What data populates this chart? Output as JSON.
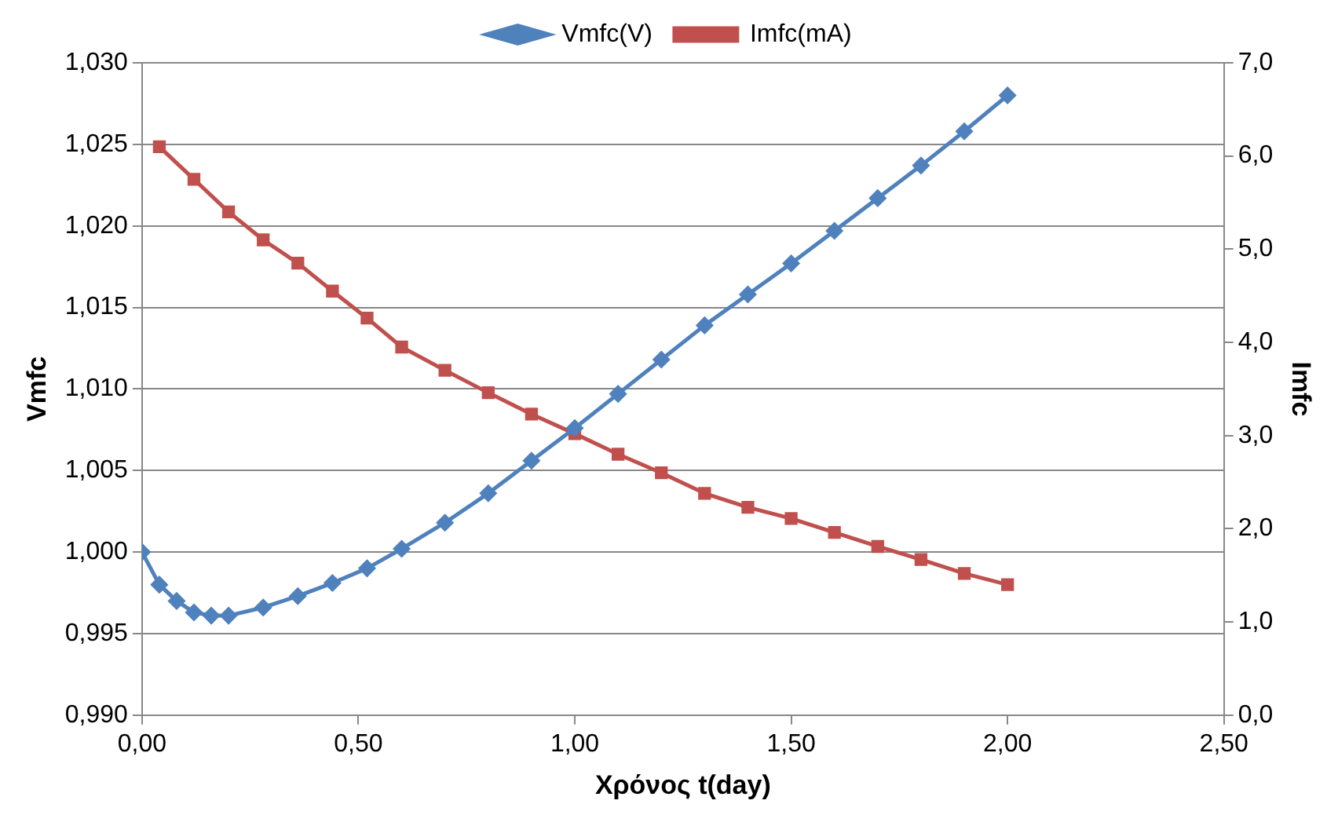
{
  "chart_data": {
    "type": "line",
    "xlabel": "Χρόνος t(day)",
    "ylabel": "Vmfc",
    "y2label": "Imfc",
    "legend": "top",
    "grid": "y",
    "line_style": "solid",
    "xlim": [
      0,
      2.5
    ],
    "xticks": [
      {
        "value": 0,
        "label": "0,00"
      },
      {
        "value": 0.5,
        "label": "0,50"
      },
      {
        "value": 1,
        "label": "1,00"
      },
      {
        "value": 1.5,
        "label": "1,50"
      },
      {
        "value": 2,
        "label": "2,00"
      },
      {
        "value": 2.5,
        "label": "2,50"
      }
    ],
    "ylim": [
      0.99,
      1.03
    ],
    "yticks": [
      {
        "value": 0.99,
        "label": "0,990"
      },
      {
        "value": 0.995,
        "label": "0,995"
      },
      {
        "value": 1,
        "label": "1,000"
      },
      {
        "value": 1.005,
        "label": "1,005"
      },
      {
        "value": 1.01,
        "label": "1,010"
      },
      {
        "value": 1.015,
        "label": "1,015"
      },
      {
        "value": 1.02,
        "label": "1,020"
      },
      {
        "value": 1.025,
        "label": "1,025"
      },
      {
        "value": 1.03,
        "label": "1,030"
      }
    ],
    "y2lim": [
      0,
      7
    ],
    "y2ticks": [
      {
        "value": 0,
        "label": "0,0"
      },
      {
        "value": 1,
        "label": "1,0"
      },
      {
        "value": 2,
        "label": "2,0"
      },
      {
        "value": 3,
        "label": "3,0"
      },
      {
        "value": 4,
        "label": "4,0"
      },
      {
        "value": 5,
        "label": "5,0"
      },
      {
        "value": 6,
        "label": "6,0"
      },
      {
        "value": 7,
        "label": "7,0"
      }
    ],
    "series": [
      {
        "name": "Vmfc(V)",
        "color": "#4f81bd",
        "marker": "diamond",
        "x": [
          0,
          0.04,
          0.08,
          0.12,
          0.16,
          0.2,
          0.28,
          0.36,
          0.44,
          0.52,
          0.6,
          0.7,
          0.8,
          0.9,
          1.0,
          1.1,
          1.2,
          1.3,
          1.4,
          1.5,
          1.6,
          1.7,
          1.8,
          1.9,
          2.0
        ],
        "values": [
          1.0,
          0.998,
          0.997,
          0.9963,
          0.9961,
          0.9961,
          0.9966,
          0.9973,
          0.9981,
          0.999,
          1.0002,
          1.0018,
          1.0036,
          1.0056,
          1.0076,
          1.0097,
          1.0118,
          1.0139,
          1.0158,
          1.0177,
          1.0197,
          1.0217,
          1.0237,
          1.0258,
          1.028
        ]
      },
      {
        "name": "Imfc(mA)",
        "color": "#c0504d",
        "marker": "square",
        "axis": "y2",
        "x": [
          0.04,
          0.12,
          0.2,
          0.28,
          0.36,
          0.44,
          0.52,
          0.6,
          0.7,
          0.8,
          0.9,
          1.0,
          1.1,
          1.2,
          1.3,
          1.4,
          1.5,
          1.6,
          1.7,
          1.8,
          1.9,
          2.0
        ],
        "values": [
          6.1,
          5.75,
          5.4,
          5.1,
          4.85,
          4.55,
          4.26,
          3.95,
          3.7,
          3.46,
          3.23,
          3.02,
          2.8,
          2.6,
          2.38,
          2.23,
          2.11,
          1.96,
          1.81,
          1.67,
          1.52,
          1.4
        ]
      }
    ]
  }
}
